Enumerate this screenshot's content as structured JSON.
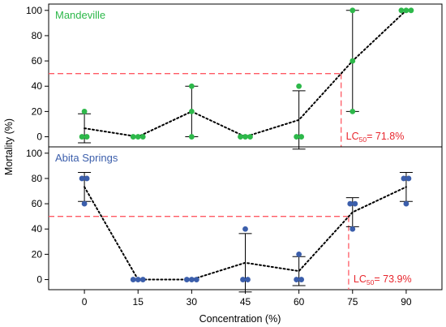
{
  "chart_data": {
    "type": "scatter",
    "xlabel": "Concentration (%)",
    "ylabel": "Mortality (%)",
    "x_ticks": [
      0,
      15,
      30,
      45,
      60,
      75,
      90
    ],
    "y_ticks": [
      0,
      20,
      40,
      60,
      80,
      100
    ],
    "xlim": [
      -10,
      100
    ],
    "ylim": [
      -8,
      105
    ],
    "grid": false,
    "colors": {
      "mean_line": "#000000",
      "threshold": "#ff5a64",
      "lc_text": "#e8262d"
    },
    "panels": [
      {
        "label": "Mandeville",
        "color": "#2db84a",
        "points": [
          {
            "x": 0,
            "ys": [
              20,
              0,
              0
            ],
            "mean": 6.7,
            "err_low": -4.8,
            "err_high": 18.2
          },
          {
            "x": 15,
            "ys": [
              0,
              0,
              0
            ],
            "mean": 0,
            "err_low": 0,
            "err_high": 0
          },
          {
            "x": 30,
            "ys": [
              40,
              20,
              0
            ],
            "mean": 20,
            "err_low": 0,
            "err_high": 40
          },
          {
            "x": 45,
            "ys": [
              0,
              0,
              0
            ],
            "mean": 0,
            "err_low": 0,
            "err_high": 0
          },
          {
            "x": 60,
            "ys": [
              40,
              0,
              0
            ],
            "mean": 13.3,
            "err_low": -9.8,
            "err_high": 36.4
          },
          {
            "x": 75,
            "ys": [
              100,
              60,
              20
            ],
            "mean": 60,
            "err_low": 20,
            "err_high": 100
          },
          {
            "x": 90,
            "ys": [
              100,
              100,
              100
            ],
            "mean": 100,
            "err_low": 100,
            "err_high": 100
          }
        ],
        "threshold_y": 50,
        "lc_x": 71.8,
        "lc_prefix": "LC",
        "lc_sub": "50",
        "lc_value": "= 71.8%"
      },
      {
        "label": "Abita Springs",
        "color": "#3b5eab",
        "points": [
          {
            "x": 0,
            "ys": [
              80,
              80,
              60
            ],
            "mean": 73.3,
            "err_low": 61.8,
            "err_high": 84.8
          },
          {
            "x": 15,
            "ys": [
              0,
              0,
              0
            ],
            "mean": 0,
            "err_low": 0,
            "err_high": 0
          },
          {
            "x": 30,
            "ys": [
              0,
              0,
              0
            ],
            "mean": 0,
            "err_low": 0,
            "err_high": 0
          },
          {
            "x": 45,
            "ys": [
              40,
              0,
              0
            ],
            "mean": 13.3,
            "err_low": -9.8,
            "err_high": 36.4
          },
          {
            "x": 60,
            "ys": [
              20,
              0,
              0
            ],
            "mean": 6.7,
            "err_low": -4.8,
            "err_high": 18.2
          },
          {
            "x": 75,
            "ys": [
              60,
              60,
              40
            ],
            "mean": 53.3,
            "err_low": 41.8,
            "err_high": 64.8
          },
          {
            "x": 90,
            "ys": [
              80,
              80,
              60
            ],
            "mean": 73.3,
            "err_low": 61.8,
            "err_high": 84.8
          }
        ],
        "threshold_y": 50,
        "lc_x": 73.9,
        "lc_prefix": "LC",
        "lc_sub": "50",
        "lc_value": "= 73.9%"
      }
    ]
  }
}
